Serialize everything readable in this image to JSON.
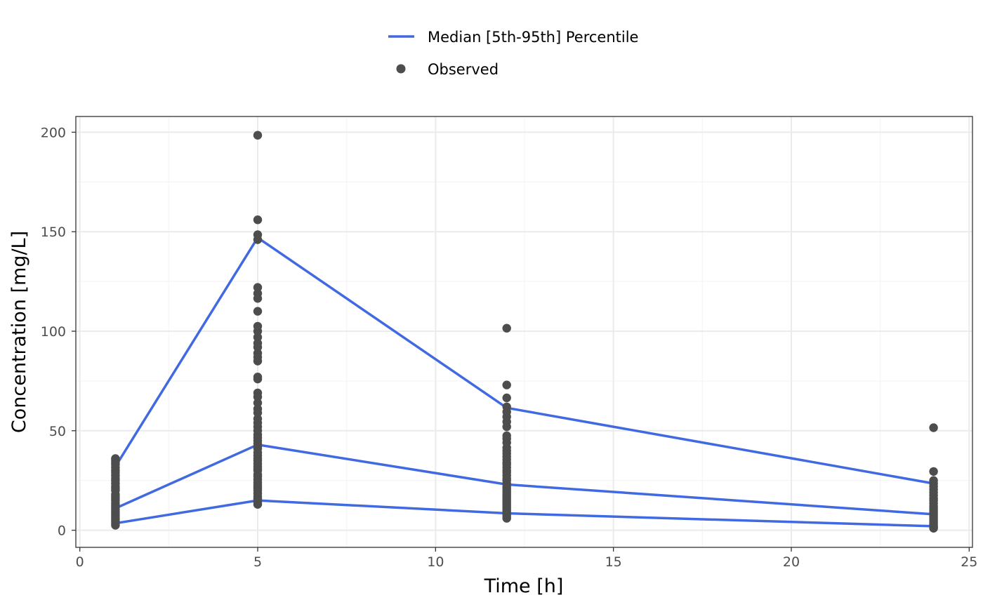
{
  "chart_data": {
    "type": "line",
    "title": "",
    "xlabel": "Time [h]",
    "ylabel": "Concentration [mg/L]",
    "xlim": [
      0,
      25
    ],
    "ylim": [
      0,
      200
    ],
    "x_ticks": [
      0,
      5,
      10,
      15,
      20,
      25
    ],
    "x_tick_labels": [
      "0",
      "5",
      "10",
      "15",
      "20",
      "25"
    ],
    "y_ticks": [
      0,
      50,
      100,
      150,
      200
    ],
    "y_tick_labels": [
      "0",
      "50",
      "100",
      "150",
      "200"
    ],
    "grid": true,
    "legend_position": "top",
    "legend": [
      {
        "label": "Median [5th-95th] Percentile",
        "kind": "line",
        "color": "#4169e1"
      },
      {
        "label": "Observed",
        "kind": "point",
        "color": "#4d4d4d"
      }
    ],
    "x": [
      1,
      5,
      12,
      24
    ],
    "series": [
      {
        "role": "p95",
        "values": [
          32,
          147,
          61.5,
          23.5
        ]
      },
      {
        "role": "median",
        "values": [
          11,
          43,
          23,
          8
        ]
      },
      {
        "role": "p5",
        "values": [
          3.5,
          15,
          8.5,
          2
        ]
      }
    ],
    "observed": [
      {
        "x": 1,
        "y": [
          2.5,
          3.5,
          4.5,
          5.5,
          6.5,
          7.5,
          8.5,
          9.5,
          10.5,
          11.5,
          12.5,
          13.5,
          15,
          16,
          17,
          18,
          20,
          21,
          22,
          23.5,
          25,
          26,
          27.5,
          29,
          30,
          31.5,
          33,
          34,
          35,
          36
        ]
      },
      {
        "x": 5,
        "y": [
          13,
          14,
          15,
          16,
          17,
          18.5,
          20,
          21,
          22,
          23,
          24,
          25.5,
          27,
          28,
          30,
          31,
          32,
          33.5,
          35,
          36,
          37.5,
          39,
          41,
          42,
          43.5,
          45,
          46.5,
          48,
          50,
          52,
          54,
          56,
          59,
          61,
          64,
          67,
          69,
          76,
          77,
          85,
          87,
          89,
          92,
          94,
          97,
          100,
          102.5,
          110,
          116.5,
          119,
          122,
          146,
          148.5,
          156,
          198.5
        ]
      },
      {
        "x": 12,
        "y": [
          6,
          7,
          8,
          9,
          10,
          11,
          12,
          13,
          14,
          15,
          16,
          17,
          18,
          19,
          20,
          21,
          22,
          23.5,
          25,
          26,
          27.5,
          29,
          30,
          31.5,
          33,
          34,
          35.5,
          37,
          38.5,
          40,
          41.5,
          44,
          46,
          47.5,
          52,
          54.5,
          57,
          59.5,
          62,
          66.5,
          73,
          101.5
        ]
      },
      {
        "x": 24,
        "y": [
          1,
          1.5,
          2,
          3,
          4,
          5,
          6,
          7,
          8,
          9,
          10,
          11,
          12,
          13.5,
          15,
          16,
          17.5,
          19,
          20.5,
          22,
          23.5,
          25,
          29.5,
          51.5
        ]
      }
    ],
    "colors": {
      "line": "#4169e1",
      "point": "#4d4d4d",
      "grid_major": "#ebebeb",
      "grid_minor": "#f4f4f4",
      "panel_border": "#333333"
    }
  }
}
